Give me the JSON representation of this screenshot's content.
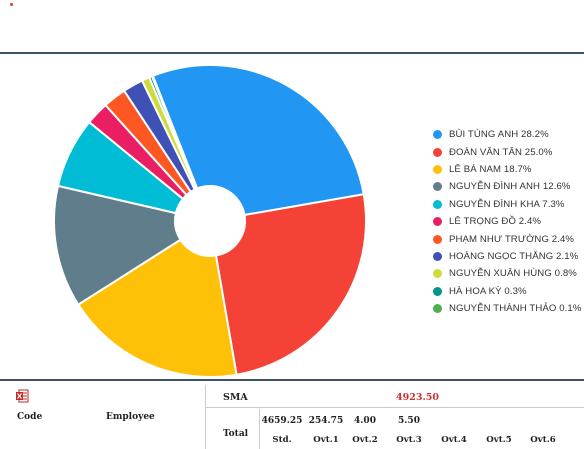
{
  "colors": {
    "rule": "#3f5166",
    "sma_value": "#d32f2f"
  },
  "chart_data": {
    "type": "pie",
    "style": "donut",
    "unit": "%",
    "legend_position": "right",
    "labels": [
      "BÙI TÙNG ANH",
      "ĐOÀN VĂN TÂN",
      "LÊ BÁ NAM",
      "NGUYỄN ĐÌNH ANH",
      "NGUYỄN ĐÌNH KHA",
      "LÊ TRỌNG ĐỒ",
      "PHẠM NHƯ TRƯỜNG",
      "HOÀNG NGỌC THẮNG",
      "NGUYỄN XUÂN HÙNG",
      "HÀ HOA KỲ",
      "NGUYỄN THÀNH THẢO"
    ],
    "values": [
      28.2,
      25.0,
      18.7,
      12.6,
      7.3,
      2.4,
      2.4,
      2.1,
      0.8,
      0.3,
      0.1
    ],
    "colors": [
      "#2196f3",
      "#f44336",
      "#ffc107",
      "#607d8b",
      "#00bcd4",
      "#e91e63",
      "#ff5722",
      "#3f51b5",
      "#cddc39",
      "#009688",
      "#4caf50"
    ],
    "legend_entries": [
      "BÙI TÙNG ANH 28.2%",
      "ĐOÀN VĂN TÂN 25.0%",
      "LÊ BÁ NAM 18.7%",
      "NGUYỄN ĐÌNH ANH 12.6%",
      "NGUYỄN ĐÌNH KHA 7.3%",
      "LÊ TRỌNG ĐỒ 2.4%",
      "PHẠM NHƯ TRƯỜNG 2.4%",
      "HOÀNG NGỌC THẮNG 2.1%",
      "NGUYỄN XUÂN HÙNG 0.8%",
      "HÀ HOA KỲ 0.3%",
      "NGUYỄN THÀNH THẢO 0.1%"
    ]
  },
  "table": {
    "export_icon": "excel-icon",
    "headers": {
      "code": "Code",
      "employee": "Employee"
    },
    "sma": {
      "label": "SMA",
      "value": "4923.50"
    },
    "total": {
      "label": "Total",
      "values": [
        "4659.25",
        "254.75",
        "4.00",
        "5.50"
      ],
      "columns": [
        "Std.",
        "Ovt.1",
        "Ovt.2",
        "Ovt.3",
        "Ovt.4",
        "Ovt.5",
        "Ovt.6"
      ]
    }
  }
}
